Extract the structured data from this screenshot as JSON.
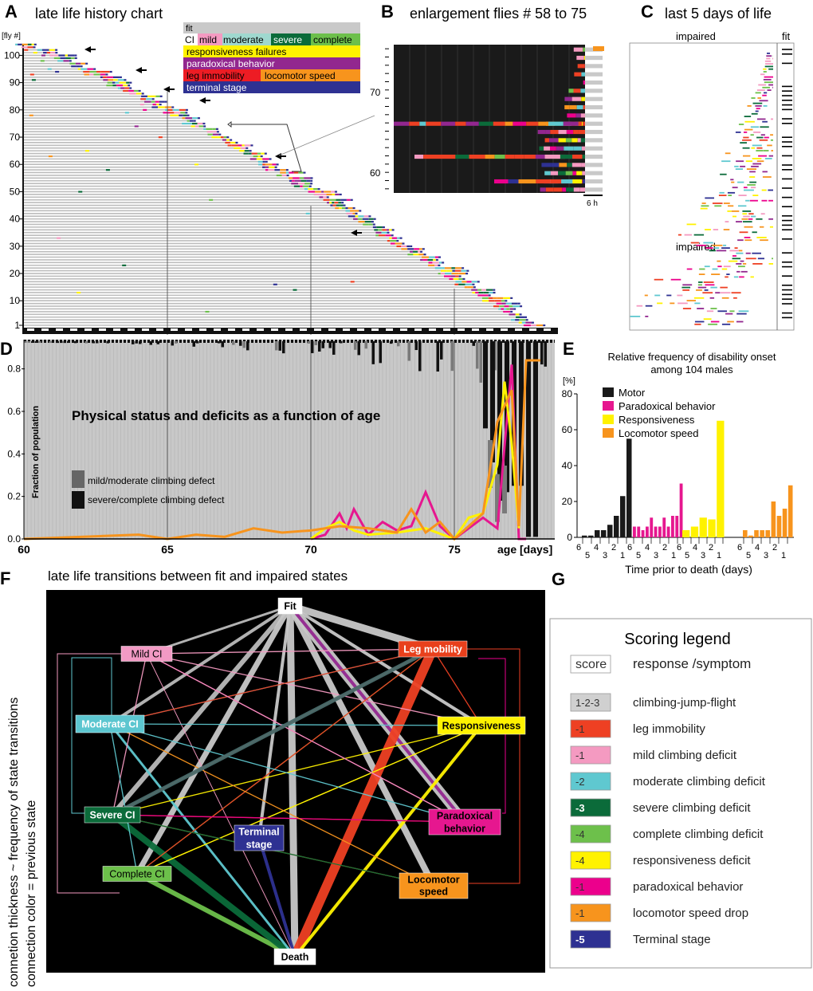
{
  "panels": {
    "A": {
      "letter": "A",
      "title": "late life history chart",
      "ylabel": "[fly #]",
      "yticks": [
        "100",
        "90",
        "80",
        "70",
        "60",
        "50",
        "40",
        "30",
        "20",
        "10",
        "1"
      ],
      "legend": {
        "fit": "fit",
        "ci": "CI",
        "mild": "mild",
        "moderate": "moderate",
        "severe": "severe",
        "complete": "complete",
        "resp": "responsiveness failures",
        "parad": "paradoxical behavior",
        "leg": "leg immobility",
        "loco": "locomotor speed",
        "term": "terminal stage"
      }
    },
    "B": {
      "letter": "B",
      "title": "enlargement flies # 58 to 75",
      "yticks": [
        "70",
        "60"
      ],
      "scale": "6 h"
    },
    "C": {
      "letter": "C",
      "title": "last 5 days of life",
      "impaired1": "impaired",
      "impaired2": "impaired",
      "fit": "fit"
    },
    "D": {
      "letter": "D",
      "chart_title": "Physical status and deficits as a function of age",
      "ylabel": "Fraction of population",
      "xlabel": "age [days]",
      "legend_mild": "mild/moderate climbing defect",
      "legend_severe": "severe/complete climbing defect"
    },
    "E": {
      "letter": "E",
      "title1": "Relative frequency of disability onset",
      "title2": "among 104 males",
      "ylabel": "[%]",
      "xlabel": "Time prior to death (days)"
    },
    "F": {
      "letter": "F",
      "title": "late life transitions between fit and impaired states",
      "side1": "connetion thickness ~ frequency of state transitions",
      "side2": "connection color = previous state"
    },
    "G": {
      "letter": "G",
      "title": "Scoring legend",
      "col1": "score",
      "col2": "response /symptom"
    }
  },
  "network": {
    "nodes": [
      {
        "id": "fit",
        "label": "Fit",
        "fill": "#ffffff",
        "text": "#000000"
      },
      {
        "id": "leg",
        "label": "Leg mobility",
        "fill": "#e8401c",
        "text": "#ffffff"
      },
      {
        "id": "mild",
        "label": "Mild CI",
        "fill": "#f29ac4",
        "text": "#000000"
      },
      {
        "id": "mod",
        "label": "Moderate CI",
        "fill": "#5cc6d0",
        "text": "#ffffff"
      },
      {
        "id": "resp",
        "label": "Responsiveness",
        "fill": "#fff200",
        "text": "#000000"
      },
      {
        "id": "sev",
        "label": "Severe CI",
        "fill": "#0b6b3a",
        "text": "#ffffff"
      },
      {
        "id": "parad1",
        "label": "Paradoxical",
        "fill": "#e6178f",
        "text": "#000000"
      },
      {
        "id": "parad2",
        "label": "behavior",
        "fill": "#e6178f",
        "text": "#000000"
      },
      {
        "id": "term1",
        "label": "Terminal",
        "fill": "#2e3192",
        "text": "#ffffff"
      },
      {
        "id": "term2",
        "label": "stage",
        "fill": "#2e3192",
        "text": "#ffffff"
      },
      {
        "id": "comp",
        "label": "Complete CI",
        "fill": "#6cc04a",
        "text": "#000000"
      },
      {
        "id": "loco1",
        "label": "Locomotor",
        "fill": "#f7941d",
        "text": "#000000"
      },
      {
        "id": "loco2",
        "label": "speed",
        "fill": "#f7941d",
        "text": "#000000"
      },
      {
        "id": "death",
        "label": "Death",
        "fill": "#ffffff",
        "text": "#000000"
      }
    ]
  },
  "scoring": [
    {
      "score": "score",
      "symptom": "response /symptom",
      "color": "#ffffff",
      "text": "#333333"
    },
    {
      "score": "1-2-3",
      "symptom": "climbing-jump-flight",
      "color": "#d0d0d0",
      "text": "#333333"
    },
    {
      "score": "-1",
      "symptom": "leg immobility",
      "color": "#ee4023",
      "text": "#333333"
    },
    {
      "score": "-1",
      "symptom": "mild climbing deficit",
      "color": "#f49ac1",
      "text": "#333333"
    },
    {
      "score": "-2",
      "symptom": "moderate climbing deficit",
      "color": "#5fc8d0",
      "text": "#333333"
    },
    {
      "score": "-3",
      "symptom": "severe climbing deficit",
      "color": "#0b6b3a",
      "text": "#ffffff"
    },
    {
      "score": "-4",
      "symptom": "complete climbing deficit",
      "color": "#6dc04b",
      "text": "#333333"
    },
    {
      "score": "-4",
      "symptom": "responsiveness deficit",
      "color": "#fff200",
      "text": "#333333"
    },
    {
      "score": "-1",
      "symptom": "paradoxical behavior",
      "color": "#ec008c",
      "text": "#333333"
    },
    {
      "score": "-1",
      "symptom": "locomotor speed drop",
      "color": "#f7941d",
      "text": "#333333"
    },
    {
      "score": "-5",
      "symptom": "Terminal stage",
      "color": "#2e3192",
      "text": "#ffffff"
    }
  ],
  "chart_data": [
    {
      "panel": "D",
      "type": "bar",
      "title": "Physical status and deficits as a function of age",
      "xlabel": "age [days]",
      "ylabel": "Fraction of population",
      "xlim": [
        60,
        78.5
      ],
      "ylim": [
        0,
        0.9
      ],
      "xticks": [
        60,
        65,
        70,
        75
      ],
      "yticks": [
        0.0,
        0.2,
        0.4,
        0.6,
        0.8
      ],
      "severe_bar_tops": {
        "ages": [
          76.0,
          76.25,
          76.5,
          76.75,
          77.0,
          77.25,
          77.5,
          77.75
        ],
        "values": [
          0.52,
          0.36,
          0.18,
          0.22,
          0.25,
          0.25,
          0.01,
          0.01
        ]
      },
      "mild_bar_tops": {
        "ages": [
          76.25,
          76.5,
          76.75
        ],
        "values": [
          0.24,
          0.08,
          0.12
        ]
      },
      "series": [
        {
          "name": "Paradoxical behavior",
          "color": "#e6178f",
          "x": [
            70,
            70.5,
            71,
            71.25,
            71.5,
            72,
            72.5,
            73,
            73.5,
            74,
            74.5,
            75,
            75.5,
            76,
            76.5,
            77,
            77.25,
            77.5
          ],
          "y": [
            0.0,
            0.02,
            0.12,
            0.05,
            0.14,
            0.02,
            0.08,
            0.04,
            0.06,
            0.22,
            0.06,
            0.0,
            0.05,
            0.1,
            0.05,
            0.82,
            0.0,
            0.0
          ]
        },
        {
          "name": "Responsiveness",
          "color": "#fff200",
          "x": [
            70,
            70.5,
            71,
            71.5,
            72,
            73,
            74,
            75,
            75.5,
            76,
            76.5,
            76.75,
            77,
            77.25
          ],
          "y": [
            0.0,
            0.05,
            0.08,
            0.04,
            0.02,
            0.03,
            0.05,
            0.0,
            0.1,
            0.12,
            0.35,
            0.74,
            0.45,
            0.05
          ]
        },
        {
          "name": "Locomotor speed",
          "color": "#f7941d",
          "x": [
            60,
            62,
            64,
            65,
            66,
            67,
            68,
            69,
            70,
            71,
            72,
            73,
            73.5,
            74,
            74.5,
            75,
            76,
            76.5,
            77,
            77.25,
            77.5,
            78
          ],
          "y": [
            0.0,
            0.01,
            0.02,
            0.0,
            0.02,
            0.01,
            0.05,
            0.03,
            0.04,
            0.06,
            0.05,
            0.03,
            0.14,
            0.03,
            0.08,
            0.0,
            0.12,
            0.55,
            0.7,
            0.06,
            0.84,
            0.84
          ]
        }
      ]
    },
    {
      "panel": "E",
      "type": "bar",
      "title": "Relative frequency of disability onset among 104 males",
      "xlabel": "Time prior to death (days)",
      "ylabel": "[%]",
      "ylim": [
        0,
        80
      ],
      "yticks": [
        0,
        20,
        40,
        60,
        80
      ],
      "xtick_labels": [
        "6",
        "5",
        "4",
        "3",
        "2",
        "1"
      ],
      "series": [
        {
          "name": "Motor",
          "color": "#1a1a1a",
          "values": [
            1,
            1,
            4,
            4,
            7,
            12,
            23,
            55
          ]
        },
        {
          "name": "Paradoxical behavior",
          "color": "#e6178f",
          "values": [
            6,
            6,
            4,
            6,
            11,
            6,
            6,
            11,
            6,
            12,
            12,
            30
          ]
        },
        {
          "name": "Responsiveness",
          "color": "#fff200",
          "values": [
            4,
            6,
            11,
            10,
            65
          ]
        },
        {
          "name": "Locomotor speed",
          "color": "#f7941d",
          "values": [
            4,
            1,
            4,
            4,
            4,
            20,
            12,
            16,
            29
          ]
        }
      ]
    }
  ]
}
